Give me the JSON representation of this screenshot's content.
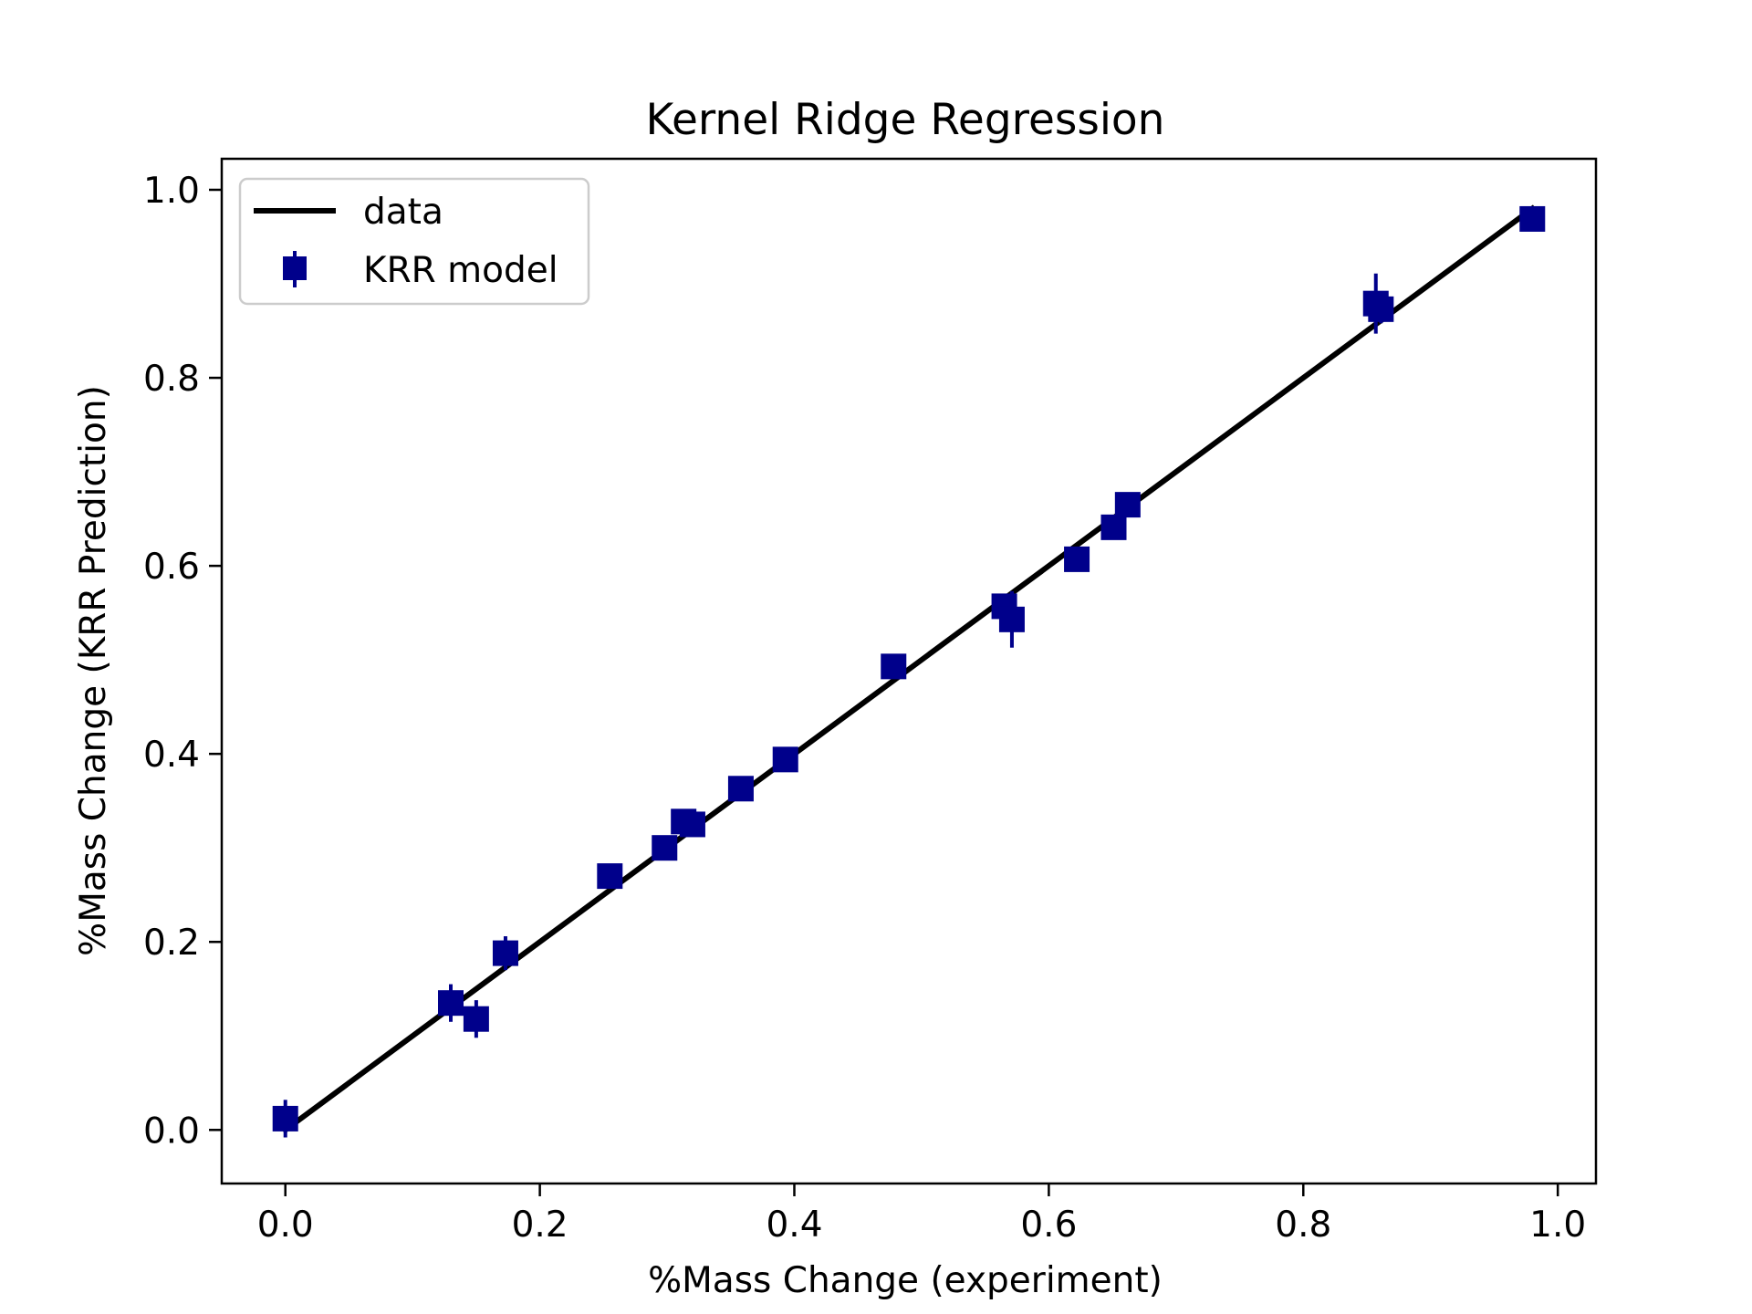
{
  "chart_data": {
    "type": "scatter",
    "title": "Kernel Ridge Regression",
    "xlabel": "%Mass Change (experiment)",
    "ylabel": "%Mass Change (KRR Prediction)",
    "xlim": [
      -0.05,
      1.03
    ],
    "ylim": [
      -0.057,
      1.033
    ],
    "xticks": [
      0.0,
      0.2,
      0.4,
      0.6,
      0.8,
      1.0
    ],
    "yticks": [
      0.0,
      0.2,
      0.4,
      0.6,
      0.8,
      1.0
    ],
    "tick_labels_x": [
      "0.0",
      "0.2",
      "0.4",
      "0.6",
      "0.8",
      "1.0"
    ],
    "tick_labels_y": [
      "0.0",
      "0.2",
      "0.4",
      "0.6",
      "0.8",
      "1.0"
    ],
    "grid": false,
    "legend": {
      "position": "upper-left",
      "entries": [
        "data",
        "KRR model"
      ]
    },
    "colors": {
      "line": "#000000",
      "marker": "#00008b"
    },
    "series": [
      {
        "name": "data",
        "kind": "line",
        "x": [
          0.0,
          0.98
        ],
        "y": [
          0.0,
          0.98
        ]
      },
      {
        "name": "KRR model",
        "kind": "errorbar",
        "marker": "square",
        "points": [
          {
            "x": 0.0,
            "y": 0.012,
            "err": 0.02
          },
          {
            "x": 0.13,
            "y": 0.135,
            "err": 0.02
          },
          {
            "x": 0.15,
            "y": 0.118,
            "err": 0.02
          },
          {
            "x": 0.173,
            "y": 0.188,
            "err": 0.018
          },
          {
            "x": 0.255,
            "y": 0.27,
            "err": 0.01
          },
          {
            "x": 0.298,
            "y": 0.3,
            "err": 0.01
          },
          {
            "x": 0.313,
            "y": 0.328,
            "err": 0.01
          },
          {
            "x": 0.32,
            "y": 0.325,
            "err": 0.01
          },
          {
            "x": 0.358,
            "y": 0.363,
            "err": 0.01
          },
          {
            "x": 0.393,
            "y": 0.394,
            "err": 0.01
          },
          {
            "x": 0.478,
            "y": 0.493,
            "err": 0.01
          },
          {
            "x": 0.565,
            "y": 0.557,
            "err": 0.01
          },
          {
            "x": 0.571,
            "y": 0.543,
            "err": 0.03
          },
          {
            "x": 0.622,
            "y": 0.607,
            "err": 0.01
          },
          {
            "x": 0.651,
            "y": 0.641,
            "err": 0.01
          },
          {
            "x": 0.662,
            "y": 0.665,
            "err": 0.01
          },
          {
            "x": 0.857,
            "y": 0.879,
            "err": 0.032
          },
          {
            "x": 0.861,
            "y": 0.873,
            "err": 0.015
          },
          {
            "x": 0.98,
            "y": 0.969,
            "err": 0.01
          }
        ]
      }
    ]
  }
}
